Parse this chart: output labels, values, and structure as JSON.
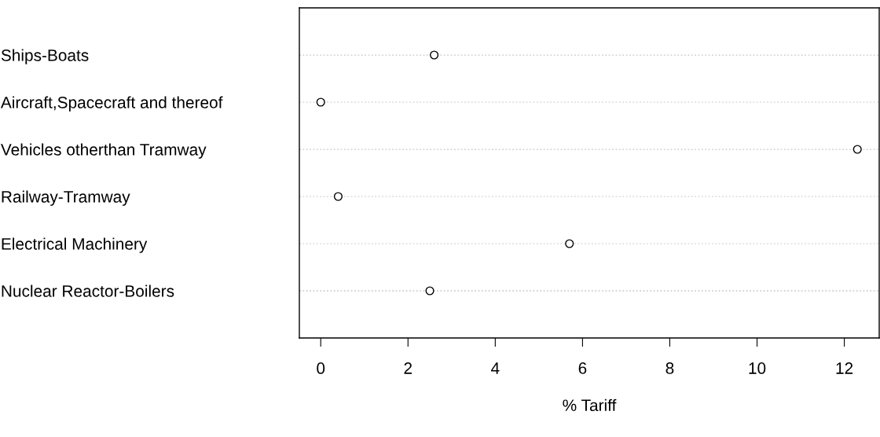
{
  "chart_data": {
    "type": "scatter",
    "orientation": "horizontal",
    "xlabel": "% Tariff",
    "categories": [
      "Ships-Boats",
      "Aircraft,Spacecraft and thereof",
      "Vehicles otherthan Tramway",
      "Railway-Tramway",
      "Electrical Machinery",
      "Nuclear Reactor-Boilers"
    ],
    "values": [
      2.6,
      0,
      12.3,
      0.4,
      5.7,
      2.5
    ],
    "color": "#000000",
    "marker": "circle",
    "grid": "y",
    "xlim": [
      -0.49,
      12.8
    ],
    "xticks": [
      0,
      2,
      4,
      6,
      8,
      10,
      12
    ]
  }
}
